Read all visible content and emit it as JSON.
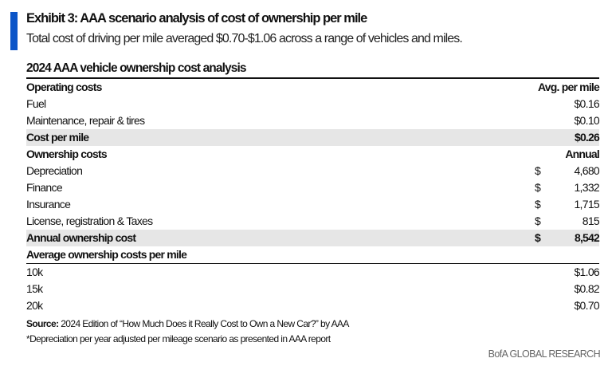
{
  "header": {
    "title": "Exhibit 3: AAA scenario analysis of cost of ownership per mile",
    "subtitle": "Total cost of driving per mile averaged $0.70-$1.06 across a range of vehicles and miles.",
    "accent_color": "#0b55c8"
  },
  "table": {
    "title": "2024 AAA vehicle ownership cost analysis",
    "operating": {
      "header": "Operating costs",
      "col_header": "Avg. per mile",
      "rows": [
        {
          "label": "Fuel",
          "value": "$0.16"
        },
        {
          "label": "Maintenance, repair & tires",
          "value": "$0.10"
        }
      ],
      "total": {
        "label": "Cost per mile",
        "value": "$0.26"
      }
    },
    "ownership": {
      "header": "Ownership costs",
      "col_header": "Annual",
      "rows": [
        {
          "label": "Depreciation",
          "currency": "$",
          "value": "4,680"
        },
        {
          "label": "Finance",
          "currency": "$",
          "value": "1,332"
        },
        {
          "label": "Insurance",
          "currency": "$",
          "value": "1,715"
        },
        {
          "label": "License, registration & Taxes",
          "currency": "$",
          "value": "815"
        }
      ],
      "total": {
        "label": "Annual ownership cost",
        "currency": "$",
        "value": "8,542"
      }
    },
    "per_mile": {
      "header": "Average ownership costs per mile",
      "rows": [
        {
          "label": "10k",
          "value": "$1.06"
        },
        {
          "label": "15k",
          "value": "$0.82"
        },
        {
          "label": "20k",
          "value": "$0.70"
        }
      ]
    }
  },
  "footer": {
    "source_label": "Source:",
    "source_text": " 2024 Edition of “How Much Does it Really Cost to Own a New Car?” by AAA",
    "note": "*Depreciation per year adjusted per mileage scenario as presented in AAA report",
    "brand": "BofA GLOBAL RESEARCH"
  }
}
